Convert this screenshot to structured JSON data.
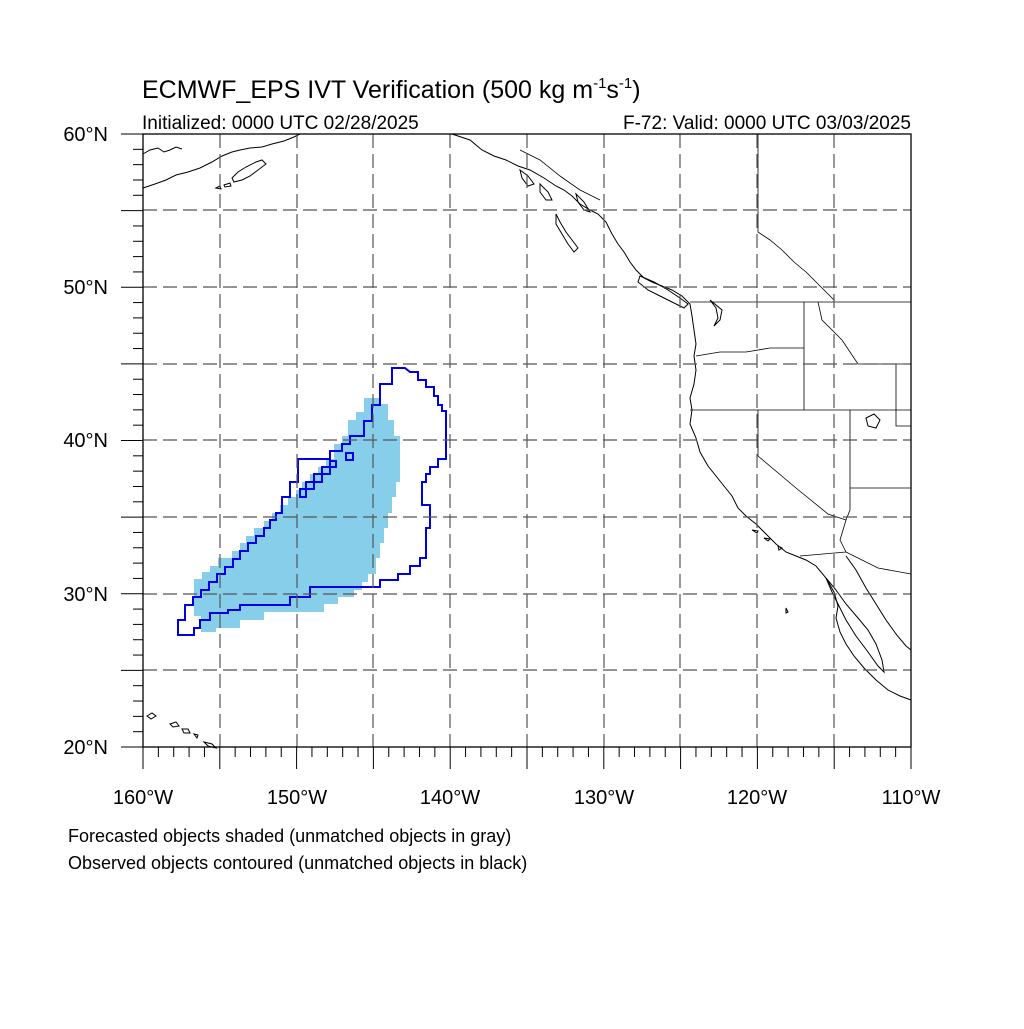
{
  "title": {
    "main": "ECMWF_EPS IVT Verification (500 kg m",
    "sup1": "-1",
    "mid": "s",
    "sup2": "-1",
    "close": ")"
  },
  "subtitle": {
    "initialized": "Initialized: 0000 UTC 02/28/2025",
    "valid": "F-72: Valid: 0000 UTC 03/03/2025"
  },
  "axes": {
    "lat_labels": [
      "60°N",
      "50°N",
      "40°N",
      "30°N",
      "20°N"
    ],
    "lon_labels": [
      "160°W",
      "150°W",
      "140°W",
      "130°W",
      "120°W",
      "110°W"
    ]
  },
  "map": {
    "lon_range": [
      -160,
      -110
    ],
    "lat_range": [
      20,
      60
    ],
    "grid_spacing_deg": 5,
    "forecast_fill_color": "#87ceeb",
    "observed_contour_color": "#0000e6"
  },
  "footer": {
    "line1": "Forecasted objects shaded (unmatched objects in gray)",
    "line2": "Observed objects contoured (unmatched objects in black)"
  }
}
